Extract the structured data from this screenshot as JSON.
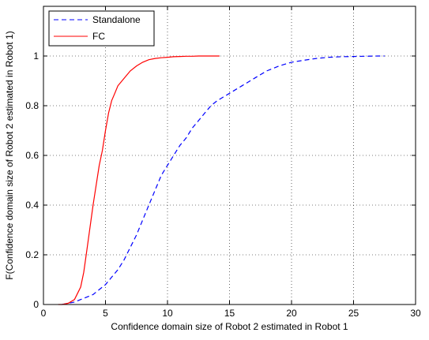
{
  "chart_data": {
    "type": "line",
    "title": "",
    "xlabel": "Confidence domain size of Robot 2 estimated in Robot 1",
    "ylabel": "F(Confidence domain size of Robot 2 estimated in Robot 1)",
    "xlim": [
      0,
      30
    ],
    "ylim": [
      0,
      1.2
    ],
    "xticks": [
      0,
      5,
      10,
      15,
      20,
      25,
      30
    ],
    "yticks": [
      0,
      0.2,
      0.4,
      0.6,
      0.8,
      1
    ],
    "xtick_labels": [
      "0",
      "5",
      "10",
      "15",
      "20",
      "25",
      "30"
    ],
    "ytick_labels": [
      "0",
      "0.2",
      "0.4",
      "0.6",
      "0.8",
      "1"
    ],
    "grid": true,
    "legend_position": "top-left",
    "series": [
      {
        "name": "Standalone",
        "color": "#0000ff",
        "style": "dashed",
        "x": [
          1.5,
          2,
          2.5,
          3,
          3.5,
          4,
          4.5,
          5,
          5.5,
          6,
          6.5,
          7,
          7.5,
          8,
          8.5,
          9,
          9.5,
          10,
          10.5,
          11,
          11.5,
          12,
          12.5,
          13,
          13.5,
          14,
          15,
          16,
          17,
          18,
          19,
          20,
          21,
          22,
          23,
          24,
          25,
          26,
          27,
          27.5
        ],
        "y": [
          0.0,
          0.005,
          0.01,
          0.02,
          0.03,
          0.04,
          0.06,
          0.08,
          0.11,
          0.14,
          0.18,
          0.23,
          0.28,
          0.34,
          0.4,
          0.46,
          0.52,
          0.56,
          0.6,
          0.64,
          0.67,
          0.71,
          0.74,
          0.77,
          0.8,
          0.82,
          0.85,
          0.88,
          0.91,
          0.94,
          0.96,
          0.975,
          0.983,
          0.99,
          0.995,
          0.997,
          0.998,
          0.999,
          1.0,
          1.0
        ]
      },
      {
        "name": "FC",
        "color": "#ff0000",
        "style": "solid",
        "x": [
          1.2,
          1.5,
          2,
          2.5,
          3,
          3.25,
          3.5,
          3.75,
          4,
          4.25,
          4.5,
          4.75,
          5,
          5.25,
          5.5,
          5.75,
          6,
          6.5,
          7,
          7.5,
          8,
          8.5,
          9,
          9.5,
          10,
          10.5,
          11,
          11.5,
          12,
          12.5,
          13,
          13.5,
          14,
          14.2
        ],
        "y": [
          0.0,
          0.0,
          0.005,
          0.02,
          0.07,
          0.13,
          0.22,
          0.31,
          0.4,
          0.48,
          0.56,
          0.62,
          0.7,
          0.77,
          0.82,
          0.85,
          0.88,
          0.91,
          0.94,
          0.96,
          0.975,
          0.985,
          0.99,
          0.993,
          0.995,
          0.997,
          0.998,
          0.999,
          0.999,
          1.0,
          1.0,
          1.0,
          1.0,
          1.0
        ]
      }
    ]
  }
}
